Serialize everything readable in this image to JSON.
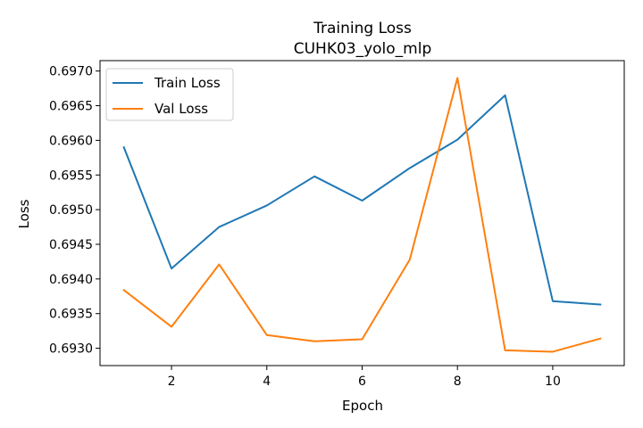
{
  "chart_data": {
    "type": "line",
    "title": "Training Loss",
    "subtitle": "CUHK03_yolo_mlp",
    "xlabel": "Epoch",
    "ylabel": "Loss",
    "x": [
      1,
      2,
      3,
      4,
      5,
      6,
      7,
      8,
      9,
      10,
      11
    ],
    "xlim": [
      0.5,
      11.5
    ],
    "ylim": [
      0.69275,
      0.69715
    ],
    "xticks": [
      2,
      4,
      6,
      8,
      10
    ],
    "yticks": [
      0.693,
      0.6935,
      0.694,
      0.6945,
      0.695,
      0.6955,
      0.696,
      0.6965,
      0.697
    ],
    "ytick_labels": [
      "0.6930",
      "0.6935",
      "0.6940",
      "0.6945",
      "0.6950",
      "0.6955",
      "0.6960",
      "0.6965",
      "0.6970"
    ],
    "grid": false,
    "legend_position": "upper-left",
    "series": [
      {
        "name": "Train Loss",
        "color": "#1f77b4",
        "values": [
          0.6959,
          0.69415,
          0.69475,
          0.69506,
          0.69548,
          0.69513,
          0.6956,
          0.69601,
          0.69665,
          0.69368,
          0.69363
        ]
      },
      {
        "name": "Val Loss",
        "color": "#ff7f0e",
        "values": [
          0.69384,
          0.69331,
          0.69421,
          0.69319,
          0.6931,
          0.69313,
          0.69428,
          0.6969,
          0.69297,
          0.69295,
          0.69314
        ]
      }
    ]
  }
}
